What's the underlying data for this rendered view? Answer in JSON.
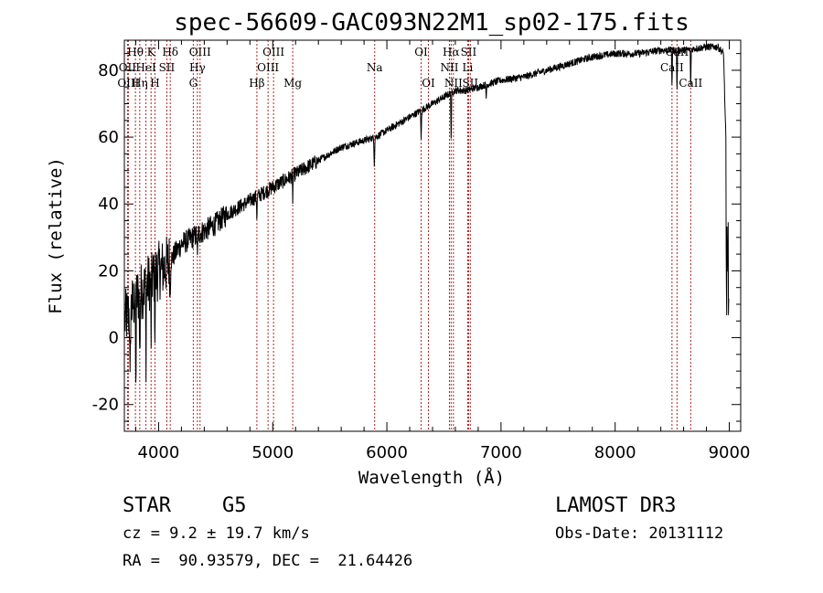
{
  "chart_data": {
    "type": "line",
    "title": "spec-56609-GAC093N22M1_sp02-175.fits",
    "xlabel": "Wavelength (Å)",
    "ylabel": "Flux (relative)",
    "xlim": [
      3700,
      9100
    ],
    "ylim": [
      -28,
      89
    ],
    "xticks": [
      4000,
      5000,
      6000,
      7000,
      8000,
      9000
    ],
    "yticks": [
      -20,
      0,
      20,
      40,
      60,
      80
    ],
    "series": [
      {
        "name": "flux",
        "x": [
          3700,
          3750,
          3800,
          3850,
          3900,
          3950,
          4000,
          4050,
          4100,
          4200,
          4300,
          4400,
          4500,
          4600,
          4700,
          4800,
          4900,
          5000,
          5100,
          5200,
          5300,
          5400,
          5500,
          5600,
          5700,
          5800,
          5900,
          6000,
          6100,
          6200,
          6300,
          6400,
          6500,
          6600,
          6700,
          6800,
          6900,
          7000,
          7200,
          7400,
          7600,
          7800,
          8000,
          8200,
          8400,
          8600,
          8800,
          8900,
          8950,
          9000
        ],
        "y": [
          5,
          8,
          12,
          14,
          16,
          18,
          20,
          21,
          23,
          28,
          30,
          32,
          34,
          37,
          39,
          41,
          43,
          45,
          47,
          49,
          51,
          53,
          55,
          57,
          58,
          59,
          60,
          62,
          64,
          66,
          68,
          70,
          72,
          74,
          74,
          75,
          76,
          77,
          78,
          80,
          82,
          84,
          85,
          85,
          86,
          86,
          87,
          87,
          85,
          20
        ]
      }
    ],
    "absorption_dips": [
      {
        "x": 3750,
        "depth": 25
      },
      {
        "x": 3800,
        "depth": 30
      },
      {
        "x": 3835,
        "depth": 20
      },
      {
        "x": 3889,
        "depth": 22
      },
      {
        "x": 3934,
        "depth": 18
      },
      {
        "x": 3968,
        "depth": 16
      },
      {
        "x": 4102,
        "depth": 10
      },
      {
        "x": 4340,
        "depth": 8
      },
      {
        "x": 4861,
        "depth": 6
      },
      {
        "x": 5175,
        "depth": 7
      },
      {
        "x": 5890,
        "depth": 8
      },
      {
        "x": 6300,
        "depth": 9
      },
      {
        "x": 6563,
        "depth": 14
      },
      {
        "x": 6870,
        "depth": 4
      },
      {
        "x": 8498,
        "depth": 10
      },
      {
        "x": 8542,
        "depth": 12
      },
      {
        "x": 8662,
        "depth": 11
      }
    ],
    "reference_lines": [
      {
        "label": "Hθ",
        "x": 3797,
        "row": 1
      },
      {
        "label": "OII",
        "x": 3727,
        "row": 2
      },
      {
        "label": "OIII",
        "x": 3735,
        "row": 3
      },
      {
        "label": "Hη",
        "x": 3835,
        "row": 3
      },
      {
        "label": "HeI",
        "x": 3889,
        "row": 2
      },
      {
        "label": "K",
        "x": 3934,
        "row": 1
      },
      {
        "label": "H",
        "x": 3968,
        "row": 3
      },
      {
        "label": "SII",
        "x": 4072,
        "row": 2
      },
      {
        "label": "Hδ",
        "x": 4102,
        "row": 1
      },
      {
        "label": "OIII",
        "x": 4363,
        "row": 1
      },
      {
        "label": "Hγ",
        "x": 4340,
        "row": 2
      },
      {
        "label": "G",
        "x": 4304,
        "row": 3
      },
      {
        "label": "Hβ",
        "x": 4861,
        "row": 3
      },
      {
        "label": "OIII",
        "x": 5007,
        "row": 1
      },
      {
        "label": "OIII",
        "x": 4959,
        "row": 2
      },
      {
        "label": "Mg",
        "x": 5175,
        "row": 3
      },
      {
        "label": "Na",
        "x": 5893,
        "row": 2
      },
      {
        "label": "OI",
        "x": 6300,
        "row": 1
      },
      {
        "label": "OI",
        "x": 6364,
        "row": 3
      },
      {
        "label": "Hα",
        "x": 6563,
        "row": 1
      },
      {
        "label": "NII",
        "x": 6548,
        "row": 2
      },
      {
        "label": "NII",
        "x": 6583,
        "row": 3
      },
      {
        "label": "SII",
        "x": 6716,
        "row": 1
      },
      {
        "label": "Li",
        "x": 6708,
        "row": 2
      },
      {
        "label": "SII",
        "x": 6731,
        "row": 3
      },
      {
        "label": "CaII",
        "x": 8542,
        "row": 1
      },
      {
        "label": "CaII",
        "x": 8498,
        "row": 2
      },
      {
        "label": "CaII",
        "x": 8662,
        "row": 3
      }
    ]
  },
  "info": {
    "class": "STAR",
    "subclass": "G5",
    "survey": "LAMOST DR3",
    "cz": "cz = 9.2 ± 19.7 km/s",
    "obs_date": "Obs-Date: 20131112",
    "radec": "RA =  90.93579, DEC =  21.64426"
  }
}
